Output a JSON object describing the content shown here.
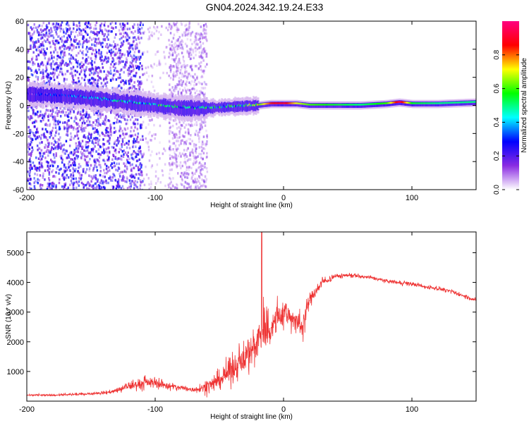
{
  "figure": {
    "title": "GN04.2024.342.19.24.E33"
  },
  "colorbar": {
    "label": "Normalized spectral amplitude",
    "ticks": [
      "0.0",
      "0.2",
      "0.4",
      "0.6",
      "0.8"
    ],
    "tick_values": [
      0.0,
      0.2,
      0.4,
      0.6,
      0.8
    ],
    "range": [
      0,
      1
    ],
    "colors": [
      "#ffffff",
      "#8a2be2",
      "#0000ff",
      "#00ffff",
      "#00ff00",
      "#ffff00",
      "#ff0000",
      "#ff0080"
    ]
  },
  "chart_data": [
    {
      "type": "heatmap",
      "title": "",
      "xlabel": "Height of straight line (km)",
      "ylabel": "Frequency (Hz)",
      "xlim": [
        -200,
        150
      ],
      "ylim": [
        -60,
        60
      ],
      "x_ticks": [
        -200,
        -100,
        0,
        100
      ],
      "x_tick_labels": [
        "-200",
        "-100",
        "0",
        "100"
      ],
      "y_ticks": [
        -60,
        -40,
        -20,
        0,
        20,
        40,
        60
      ],
      "y_tick_labels": [
        "-60",
        "-40",
        "-20",
        "0",
        "20",
        "40",
        "60"
      ],
      "grid": false,
      "ridge": {
        "x": [
          -200,
          -160,
          -140,
          -120,
          -100,
          -80,
          -60,
          -40,
          -20,
          -10,
          0,
          10,
          20,
          40,
          60,
          80,
          90,
          100,
          120,
          150
        ],
        "freq": [
          8,
          6,
          4,
          2,
          0,
          -2,
          -2,
          -1,
          0,
          1,
          1,
          1,
          0,
          0,
          0,
          1,
          2,
          1,
          1,
          2
        ],
        "amplitude": [
          0.2,
          0.35,
          0.4,
          0.45,
          0.5,
          0.45,
          0.45,
          0.5,
          0.6,
          0.85,
          0.9,
          0.7,
          0.6,
          0.55,
          0.5,
          0.6,
          0.95,
          0.55,
          0.5,
          0.5
        ]
      },
      "scatter_regions": [
        {
          "x_range": [
            -200,
            -110
          ],
          "freq_range": [
            -60,
            60
          ],
          "density": "high",
          "amplitude": 0.15
        },
        {
          "x_range": [
            -110,
            -90
          ],
          "freq_range": [
            -60,
            60
          ],
          "density": "low",
          "amplitude": 0.05
        },
        {
          "x_range": [
            -90,
            -60
          ],
          "freq_range": [
            -60,
            60
          ],
          "density": "medium",
          "amplitude": 0.08
        }
      ]
    },
    {
      "type": "line",
      "title": "",
      "xlabel": "Height of straight line (km)",
      "ylabel": "SNR (10 * v/v)",
      "xlim": [
        -200,
        150
      ],
      "ylim": [
        0,
        5700
      ],
      "x_ticks": [
        -200,
        -100,
        0,
        100
      ],
      "x_tick_labels": [
        "-200",
        "-100",
        "0",
        "100"
      ],
      "y_ticks": [
        1000,
        2000,
        3000,
        4000,
        5000
      ],
      "y_tick_labels": [
        "1000",
        "2000",
        "3000",
        "4000",
        "5000"
      ],
      "grid": false,
      "series": [
        {
          "color": "#ee3333",
          "x": [
            -200,
            -180,
            -160,
            -140,
            -130,
            -120,
            -110,
            -100,
            -90,
            -80,
            -70,
            -60,
            -50,
            -40,
            -30,
            -20,
            -15,
            -10,
            -5,
            0,
            5,
            10,
            15,
            20,
            30,
            40,
            50,
            60,
            70,
            80,
            90,
            100,
            110,
            120,
            130,
            140,
            150
          ],
          "y": [
            200,
            200,
            230,
            280,
            350,
            500,
            600,
            650,
            500,
            450,
            380,
            500,
            700,
            1100,
            1500,
            2000,
            2600,
            2400,
            2800,
            3000,
            2900,
            2600,
            2600,
            3400,
            4000,
            4200,
            4250,
            4200,
            4150,
            4050,
            4000,
            3950,
            3850,
            3800,
            3700,
            3550,
            3400
          ],
          "noise": [
            60,
            60,
            70,
            90,
            150,
            300,
            350,
            350,
            250,
            200,
            150,
            400,
            600,
            900,
            1100,
            1300,
            2000,
            1200,
            1000,
            900,
            800,
            900,
            800,
            500,
            250,
            150,
            130,
            130,
            120,
            120,
            150,
            130,
            120,
            120,
            120,
            120,
            120
          ]
        }
      ],
      "spike": {
        "x": -17,
        "y": 5700
      }
    }
  ]
}
